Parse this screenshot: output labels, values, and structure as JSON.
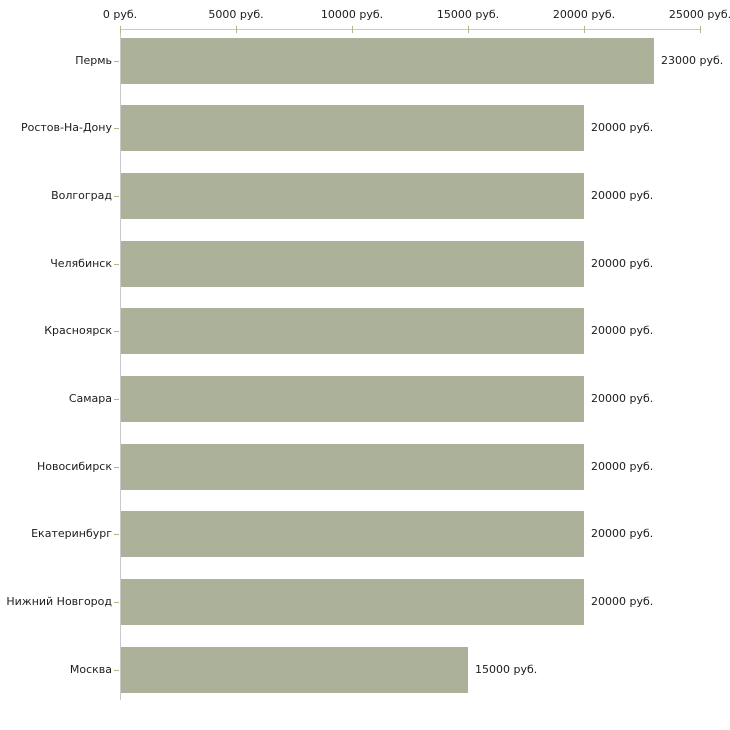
{
  "chart_data": {
    "type": "bar",
    "orientation": "horizontal",
    "title": "",
    "xlabel": "",
    "ylabel": "",
    "categories": [
      "Пермь",
      "Ростов-На-Дону",
      "Волгоград",
      "Челябинск",
      "Красноярск",
      "Самара",
      "Новосибирск",
      "Екатеринбург",
      "Нижний Новгород",
      "Москва"
    ],
    "values": [
      23000,
      20000,
      20000,
      20000,
      20000,
      20000,
      20000,
      20000,
      20000,
      15000
    ],
    "value_labels": [
      "23000 руб.",
      "20000 руб.",
      "20000 руб.",
      "20000 руб.",
      "20000 руб.",
      "20000 руб.",
      "20000 руб.",
      "20000 руб.",
      "20000 руб.",
      "15000 руб."
    ],
    "x_ticks": [
      0,
      5000,
      10000,
      15000,
      20000,
      25000
    ],
    "x_tick_labels": [
      "0 руб.",
      "5000 руб.",
      "10000 руб.",
      "15000 руб.",
      "20000 руб.",
      "25000 руб."
    ],
    "xlim": [
      0,
      25000
    ],
    "unit": "руб.",
    "grid": false,
    "legend_position": "none",
    "colors": {
      "bar_fill": "#abb299",
      "axis_line": "#c9c9c9",
      "tick_mark": "#b5b585",
      "text": "#1c1c1c",
      "background": "#ffffff"
    }
  }
}
